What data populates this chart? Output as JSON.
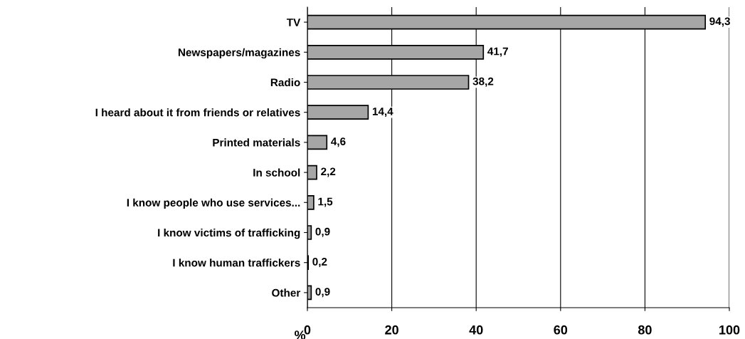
{
  "chart_data": {
    "type": "bar",
    "orientation": "horizontal",
    "categories": [
      "TV",
      "Newspapers/magazines",
      "Radio",
      "I heard about it from friends or relatives",
      "Printed materials",
      "In school",
      "I know people who use services...",
      "I know victims of trafficking",
      "I know human traffickers",
      "Other"
    ],
    "values": [
      94.3,
      41.7,
      38.2,
      14.4,
      4.6,
      2.2,
      1.5,
      0.9,
      0.2,
      0.9
    ],
    "value_labels": [
      "94,3",
      "41,7",
      "38,2",
      "14,4",
      "4,6",
      "2,2",
      "1,5",
      "0,9",
      "0,2",
      "0,9"
    ],
    "color": "#a6a6a6",
    "xlim": [
      0,
      100
    ],
    "xticks": [
      0,
      20,
      40,
      60,
      80,
      100
    ],
    "xlabel": "%",
    "grid": "x"
  }
}
